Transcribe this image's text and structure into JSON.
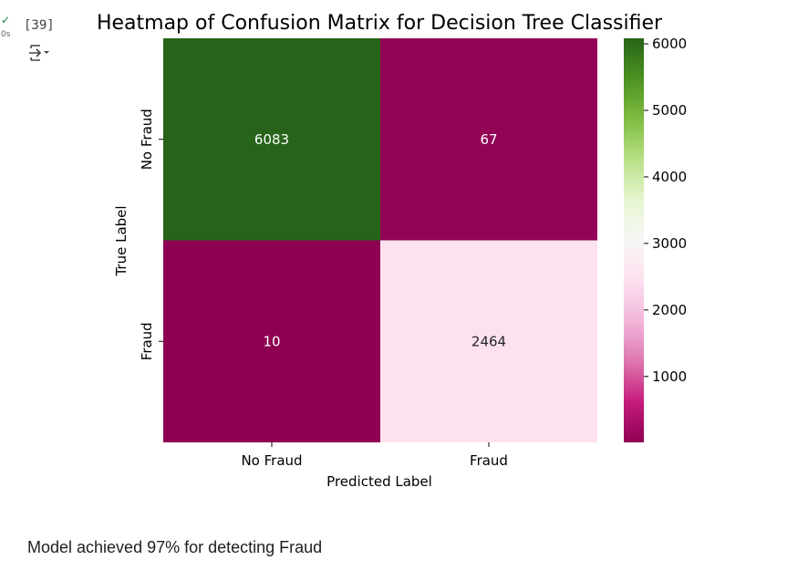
{
  "cell": {
    "status_icon": "check-icon",
    "exec_time": "0s",
    "exec_count": "[39]",
    "output_toggle_icon": "output-toggle-icon"
  },
  "chart_data": {
    "type": "heatmap",
    "title": "Heatmap of Confusion Matrix for Decision Tree Classifier",
    "xlabel": "Predicted Label",
    "ylabel": "True Label",
    "x_categories": [
      "No Fraud",
      "Fraud"
    ],
    "y_categories": [
      "No Fraud",
      "Fraud"
    ],
    "values": [
      [
        6083,
        67
      ],
      [
        10,
        2464
      ]
    ],
    "colormap": "PiYG",
    "colorbar": {
      "ticks": [
        6000,
        5000,
        4000,
        3000,
        2000,
        1000
      ],
      "min": 10,
      "max": 6083
    },
    "colors": {
      "high": "#276419",
      "low": "#8e0152",
      "mid_light": "#fde0ef"
    }
  },
  "output_text": "Model achieved 97% for detecting Fraud"
}
